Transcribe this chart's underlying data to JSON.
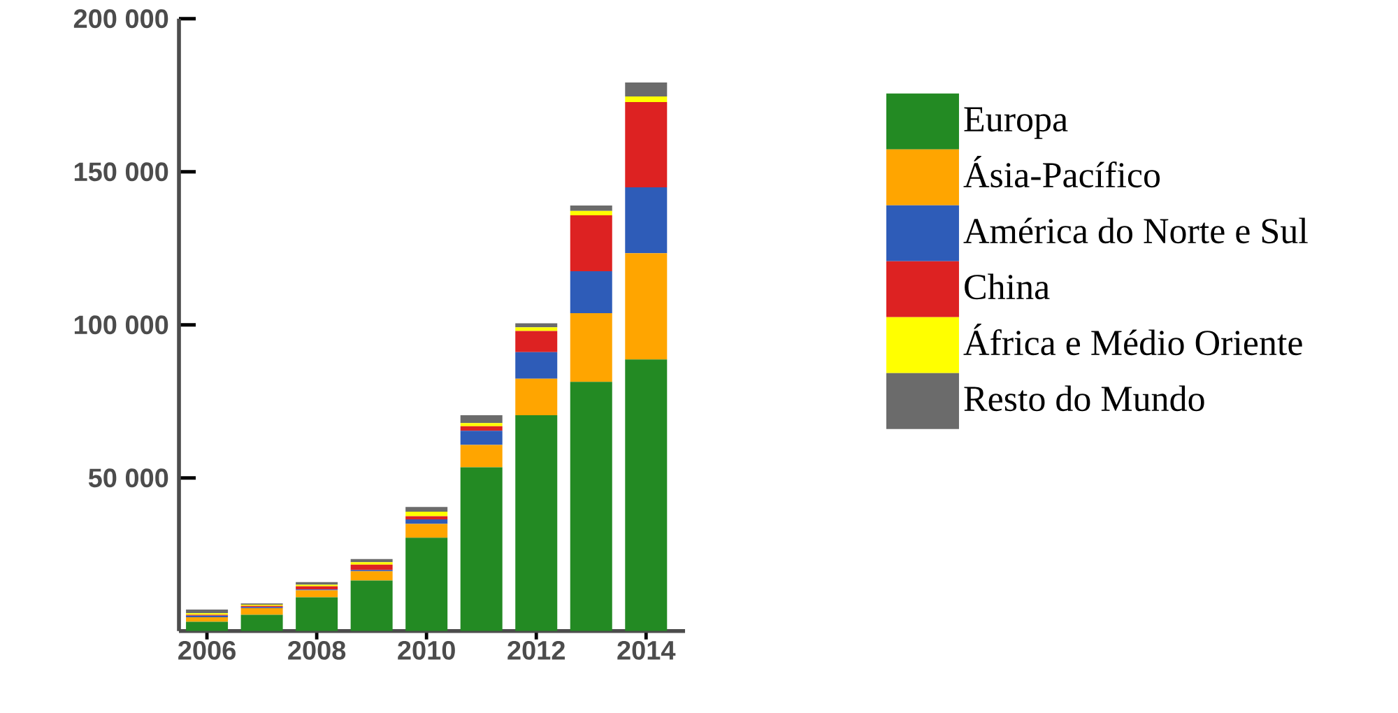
{
  "chart_data": {
    "type": "bar",
    "stacked": true,
    "legend": "right",
    "categories": [
      "2006",
      null,
      "2008",
      null,
      "2010",
      null,
      "2012",
      null,
      "2014"
    ],
    "ylim": [
      0,
      200000
    ],
    "yticks": [
      {
        "value": 50000,
        "label": "50 000"
      },
      {
        "value": 100000,
        "label": "100 000"
      },
      {
        "value": 150000,
        "label": "150 000"
      },
      {
        "value": 200000,
        "label": "200 000"
      }
    ],
    "series": [
      {
        "name": "Europa",
        "color": "#238a23",
        "values": [
          3000,
          5300,
          11000,
          16500,
          30500,
          53500,
          70500,
          81400,
          88700
        ]
      },
      {
        "name": "Ásia-Pacífico",
        "color": "#ffa500",
        "values": [
          1500,
          2200,
          2300,
          3000,
          4500,
          7300,
          11900,
          22400,
          34700
        ]
      },
      {
        "name": "América do Norte e Sul",
        "color": "#2e5cb8",
        "values": [
          500,
          300,
          300,
          400,
          1500,
          4600,
          8700,
          13700,
          21500
        ]
      },
      {
        "name": "China",
        "color": "#dd2222",
        "values": [
          300,
          400,
          1000,
          1800,
          1000,
          1500,
          6900,
          18300,
          27900
        ]
      },
      {
        "name": "África e Médio Oriente",
        "color": "#ffff00",
        "values": [
          500,
          400,
          500,
          800,
          1500,
          1000,
          1200,
          1400,
          1800
        ]
      },
      {
        "name": "Resto do Mundo",
        "color": "#6b6b6b",
        "values": [
          1200,
          400,
          900,
          1000,
          1500,
          2600,
          1300,
          1800,
          4600
        ]
      }
    ]
  }
}
